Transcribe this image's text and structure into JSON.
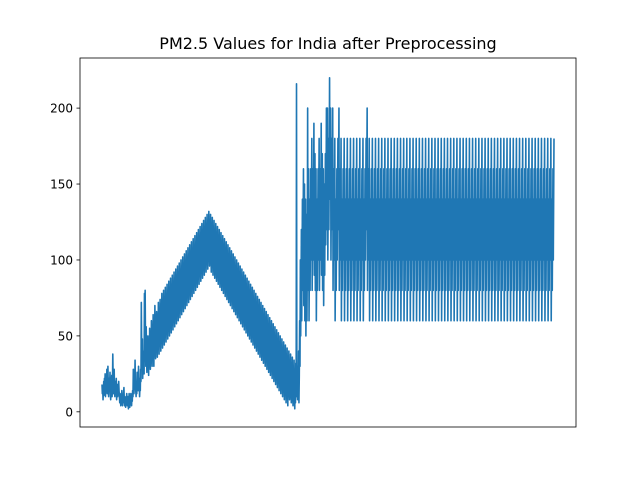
{
  "chart_data": {
    "type": "line",
    "title": "PM2.5 Values for India after Preprocessing",
    "xlabel": "",
    "ylabel": "",
    "x_ticks_visible": false,
    "ylim": [
      -10,
      233
    ],
    "yticks": [
      0,
      50,
      100,
      150,
      200
    ],
    "grid": false,
    "legend": "none",
    "series": [
      {
        "color": "#1f77b4",
        "y": [
          18,
          12,
          16,
          8,
          14,
          20,
          11,
          22,
          15,
          25,
          10,
          18,
          24,
          14,
          28,
          12,
          20,
          30,
          16,
          10,
          22,
          14,
          18,
          26,
          12,
          8,
          20,
          15,
          24,
          10,
          16,
          38,
          22,
          12,
          18,
          28,
          14,
          10,
          20,
          16,
          12,
          22,
          8,
          14,
          18,
          10,
          16,
          12,
          20,
          14,
          10,
          6,
          12,
          8,
          4,
          10,
          6,
          14,
          8,
          4,
          10,
          6,
          12,
          16,
          8,
          4,
          10,
          6,
          3,
          8,
          5,
          12,
          8,
          4,
          10,
          6,
          2,
          8,
          12,
          5,
          3,
          9,
          6,
          12,
          8,
          4,
          10,
          7,
          14,
          10,
          28,
          18,
          12,
          22,
          16,
          34,
          20,
          14,
          10,
          18,
          12,
          26,
          20,
          24,
          14,
          30,
          18,
          22,
          10,
          16,
          14,
          28,
          20,
          72,
          40,
          30,
          48,
          22,
          35,
          28,
          40,
          25,
          78,
          60,
          80,
          45,
          30,
          56,
          38,
          26,
          42,
          30,
          50,
          36,
          24,
          45,
          30,
          55,
          40,
          28,
          48,
          35,
          60,
          42,
          30,
          52,
          38,
          64,
          45,
          30,
          55,
          42,
          70,
          48,
          35,
          58,
          44,
          66,
          50,
          36,
          60,
          46,
          72,
          52,
          38,
          64,
          48,
          74,
          54,
          40,
          66,
          50,
          78,
          56,
          42,
          68,
          52,
          80,
          58,
          44,
          70,
          54,
          82,
          60,
          46,
          72,
          56,
          84,
          62,
          48,
          74,
          58,
          86,
          64,
          50,
          76,
          60,
          88,
          66,
          52,
          78,
          62,
          90,
          68,
          54,
          80,
          64,
          92,
          70,
          56,
          82,
          66,
          94,
          72,
          58,
          84,
          68,
          96,
          74,
          60,
          86,
          70,
          98,
          76,
          62,
          88,
          72,
          100,
          78,
          64,
          90,
          74,
          102,
          80,
          66,
          92,
          76,
          104,
          82,
          68,
          94,
          78,
          106,
          84,
          70,
          96,
          80,
          108,
          86,
          72,
          98,
          82,
          110,
          88,
          74,
          100,
          84,
          112,
          90,
          76,
          102,
          86,
          114,
          92,
          78,
          104,
          88,
          116,
          94,
          80,
          106,
          90,
          118,
          96,
          82,
          108,
          92,
          120,
          98,
          84,
          110,
          94,
          122,
          100,
          86,
          112,
          96,
          124,
          102,
          88,
          114,
          98,
          126,
          104,
          90,
          116,
          100,
          128,
          106,
          92,
          118,
          102,
          130,
          108,
          94,
          120,
          104,
          132,
          110,
          96,
          122,
          106,
          130,
          108,
          92,
          120,
          102,
          128,
          106,
          90,
          118,
          100,
          126,
          104,
          88,
          116,
          98,
          124,
          102,
          86,
          114,
          96,
          122,
          100,
          84,
          112,
          94,
          120,
          98,
          82,
          110,
          92,
          118,
          96,
          80,
          108,
          90,
          116,
          94,
          78,
          106,
          88,
          114,
          92,
          76,
          104,
          86,
          112,
          90,
          74,
          102,
          84,
          110,
          88,
          72,
          100,
          82,
          108,
          86,
          70,
          98,
          80,
          106,
          84,
          68,
          96,
          78,
          104,
          82,
          66,
          94,
          76,
          102,
          80,
          64,
          92,
          74,
          100,
          78,
          62,
          90,
          72,
          98,
          76,
          60,
          88,
          70,
          96,
          74,
          58,
          86,
          68,
          94,
          72,
          56,
          84,
          66,
          92,
          70,
          54,
          82,
          64,
          90,
          68,
          52,
          80,
          62,
          88,
          66,
          50,
          78,
          60,
          86,
          64,
          48,
          76,
          58,
          84,
          62,
          46,
          74,
          56,
          82,
          60,
          44,
          72,
          54,
          80,
          58,
          42,
          70,
          52,
          78,
          56,
          40,
          68,
          50,
          76,
          54,
          38,
          66,
          48,
          74,
          52,
          36,
          64,
          46,
          72,
          50,
          34,
          62,
          44,
          70,
          48,
          32,
          60,
          42,
          68,
          46,
          30,
          58,
          40,
          66,
          44,
          28,
          56,
          38,
          64,
          42,
          26,
          54,
          36,
          62,
          40,
          24,
          52,
          34,
          60,
          38,
          22,
          50,
          32,
          58,
          36,
          20,
          48,
          30,
          56,
          34,
          18,
          46,
          28,
          54,
          32,
          16,
          44,
          26,
          52,
          30,
          14,
          42,
          24,
          50,
          28,
          12,
          40,
          22,
          48,
          26,
          10,
          38,
          20,
          46,
          24,
          8,
          36,
          18,
          44,
          22,
          6,
          34,
          16,
          42,
          20,
          4,
          32,
          14,
          40,
          18,
          8,
          30,
          12,
          38,
          16,
          6,
          28,
          10,
          36,
          14,
          4,
          26,
          8,
          34,
          12,
          2,
          24,
          6,
          32,
          10,
          216,
          18,
          28,
          8,
          30,
          12,
          40,
          6,
          24,
          60,
          30,
          100,
          50,
          80,
          120,
          60,
          100,
          140,
          80,
          120,
          160,
          70,
          110,
          150,
          60,
          100,
          140,
          50,
          90,
          130,
          60,
          100,
          200,
          80,
          120,
          160,
          60,
          100,
          140,
          80,
          120,
          160,
          100,
          140,
          180,
          80,
          120,
          160,
          100,
          140,
          190,
          90,
          130,
          170,
          80,
          120,
          160,
          60,
          100,
          140,
          80,
          120,
          160,
          100,
          140,
          180,
          80,
          120,
          160,
          100,
          140,
          190,
          90,
          130,
          170,
          80,
          120,
          160,
          70,
          110,
          150,
          90,
          130,
          170,
          110,
          150,
          200,
          120,
          160,
          200,
          100,
          140,
          180,
          120,
          160,
          220,
          140,
          180,
          200,
          100,
          140,
          180,
          120,
          160,
          200,
          80,
          120,
          160,
          100,
          140,
          180,
          60,
          100,
          140,
          80,
          120,
          160,
          100,
          140,
          180,
          120,
          160,
          200,
          80,
          120,
          160,
          100,
          140,
          180,
          60,
          100,
          140,
          80,
          120,
          160,
          100,
          140,
          180,
          60,
          100,
          140,
          80,
          120,
          160,
          100,
          140,
          180,
          60,
          100,
          140,
          80,
          120,
          160,
          100,
          140,
          180,
          60,
          100,
          140,
          80,
          120,
          160,
          100,
          140,
          180,
          60,
          100,
          140,
          80,
          120,
          160,
          100,
          140,
          180,
          60,
          100,
          140,
          80,
          120,
          160,
          100,
          140,
          180,
          60,
          100,
          140,
          80,
          120,
          160,
          100,
          140,
          180,
          60,
          100,
          140,
          80,
          120,
          160,
          100,
          140,
          180,
          120,
          160,
          200,
          80,
          120,
          160,
          100,
          140,
          180,
          60,
          100,
          140,
          80,
          120,
          160,
          100,
          140,
          180,
          60,
          100,
          140,
          80,
          120,
          160,
          100,
          140,
          180,
          60,
          100,
          140,
          80,
          120,
          160,
          100,
          140,
          180,
          60,
          100,
          140,
          80,
          120,
          160,
          100,
          140,
          180,
          60,
          100,
          140,
          80,
          120,
          160,
          100,
          140,
          180,
          60,
          100,
          140,
          80,
          120,
          160,
          100,
          140,
          180,
          60,
          100,
          140,
          80,
          120,
          160,
          100,
          140,
          180,
          60,
          100,
          140,
          80,
          120,
          160,
          100,
          140,
          180,
          60,
          100,
          140,
          80,
          120,
          160,
          100,
          140,
          180,
          60,
          100,
          140,
          80,
          120,
          160,
          100,
          140,
          180,
          60,
          100,
          140,
          80,
          120,
          160,
          100,
          140,
          180,
          60,
          100,
          140,
          80,
          120,
          160,
          100,
          140,
          180,
          60,
          100,
          140,
          80,
          120,
          160,
          100,
          140,
          180,
          60,
          100,
          140,
          80,
          120,
          160,
          100,
          140,
          180,
          60,
          100,
          140,
          80,
          120,
          160,
          100,
          140,
          180,
          60,
          100,
          140,
          80,
          120,
          160,
          100,
          140,
          180,
          60,
          100,
          140,
          80,
          120,
          160,
          100,
          140,
          180,
          60,
          100,
          140,
          80,
          120,
          160,
          100,
          140,
          180,
          60,
          100,
          140,
          80,
          120,
          160,
          100,
          140,
          180,
          60,
          100,
          140,
          80,
          120,
          160,
          100,
          140,
          180,
          60,
          100,
          140,
          80,
          120,
          160,
          100,
          140,
          180,
          60,
          100,
          140,
          80,
          120,
          160,
          100,
          140,
          180,
          60,
          100,
          140,
          80,
          120,
          160,
          100,
          140,
          180,
          60,
          100,
          140,
          80,
          120,
          160,
          100,
          140,
          180,
          60,
          100,
          140,
          80,
          120,
          160,
          100,
          140,
          180,
          60,
          100,
          140,
          80,
          120,
          160,
          100,
          140,
          180,
          60,
          100,
          140,
          80,
          120,
          160,
          100,
          140,
          180,
          60,
          100,
          140,
          80,
          120,
          160,
          100,
          140,
          180,
          60,
          100,
          140,
          80,
          120,
          160,
          100,
          140,
          180,
          60,
          100,
          140,
          80,
          120,
          160,
          100,
          140,
          180,
          60,
          100,
          140,
          80,
          120,
          160,
          100,
          140,
          180,
          60,
          100,
          140,
          80,
          120,
          160,
          100,
          140,
          180,
          60,
          100,
          140,
          80,
          120,
          160,
          100,
          140,
          180,
          60,
          100,
          140,
          80,
          120,
          160,
          100,
          140,
          180,
          60,
          100,
          140,
          80,
          120,
          160,
          100,
          140,
          180,
          60,
          100,
          140,
          80,
          120,
          160,
          100,
          140,
          180,
          60,
          100,
          140,
          80,
          120,
          160,
          100,
          140,
          180,
          60,
          100,
          140,
          80,
          120,
          160,
          100,
          140,
          180,
          60,
          100,
          140,
          80,
          120,
          160,
          100,
          140,
          180,
          60,
          100,
          140,
          80,
          120,
          160,
          100,
          140,
          180,
          60,
          100,
          140,
          80,
          120,
          160,
          100,
          140,
          180,
          60,
          100,
          140,
          80,
          120,
          160,
          100,
          140,
          180,
          60,
          100,
          140,
          80,
          120,
          160,
          100,
          140,
          180,
          60,
          100,
          140,
          80,
          120,
          160,
          100,
          140,
          180,
          60,
          100,
          140,
          80,
          120,
          160,
          100,
          140,
          180,
          60,
          100,
          140,
          80,
          120,
          160,
          100,
          140,
          180,
          60,
          100,
          140,
          80,
          120,
          160,
          100,
          140,
          180,
          60,
          100,
          140,
          80,
          120,
          160,
          100,
          140,
          180,
          60,
          100,
          140,
          80,
          120,
          160,
          100,
          140,
          180,
          60,
          100,
          140,
          80,
          120,
          160,
          100,
          140,
          180,
          60,
          100,
          140,
          80,
          120,
          160,
          100,
          140,
          180,
          60,
          100,
          140,
          80,
          120,
          160,
          100,
          140,
          180,
          60,
          100,
          140,
          80,
          120,
          160,
          100,
          140,
          180,
          60,
          100,
          140,
          80,
          120,
          160,
          100,
          140,
          180,
          60,
          100,
          140,
          80,
          120,
          160,
          100,
          140,
          180,
          60,
          100,
          140,
          80,
          120,
          160,
          100,
          140,
          180,
          60,
          100,
          140,
          80,
          120,
          160,
          100,
          140,
          180,
          60,
          100,
          140,
          80,
          120,
          160,
          100,
          140,
          180,
          60,
          100,
          140,
          80,
          120,
          160,
          100,
          140,
          180
        ]
      }
    ]
  }
}
